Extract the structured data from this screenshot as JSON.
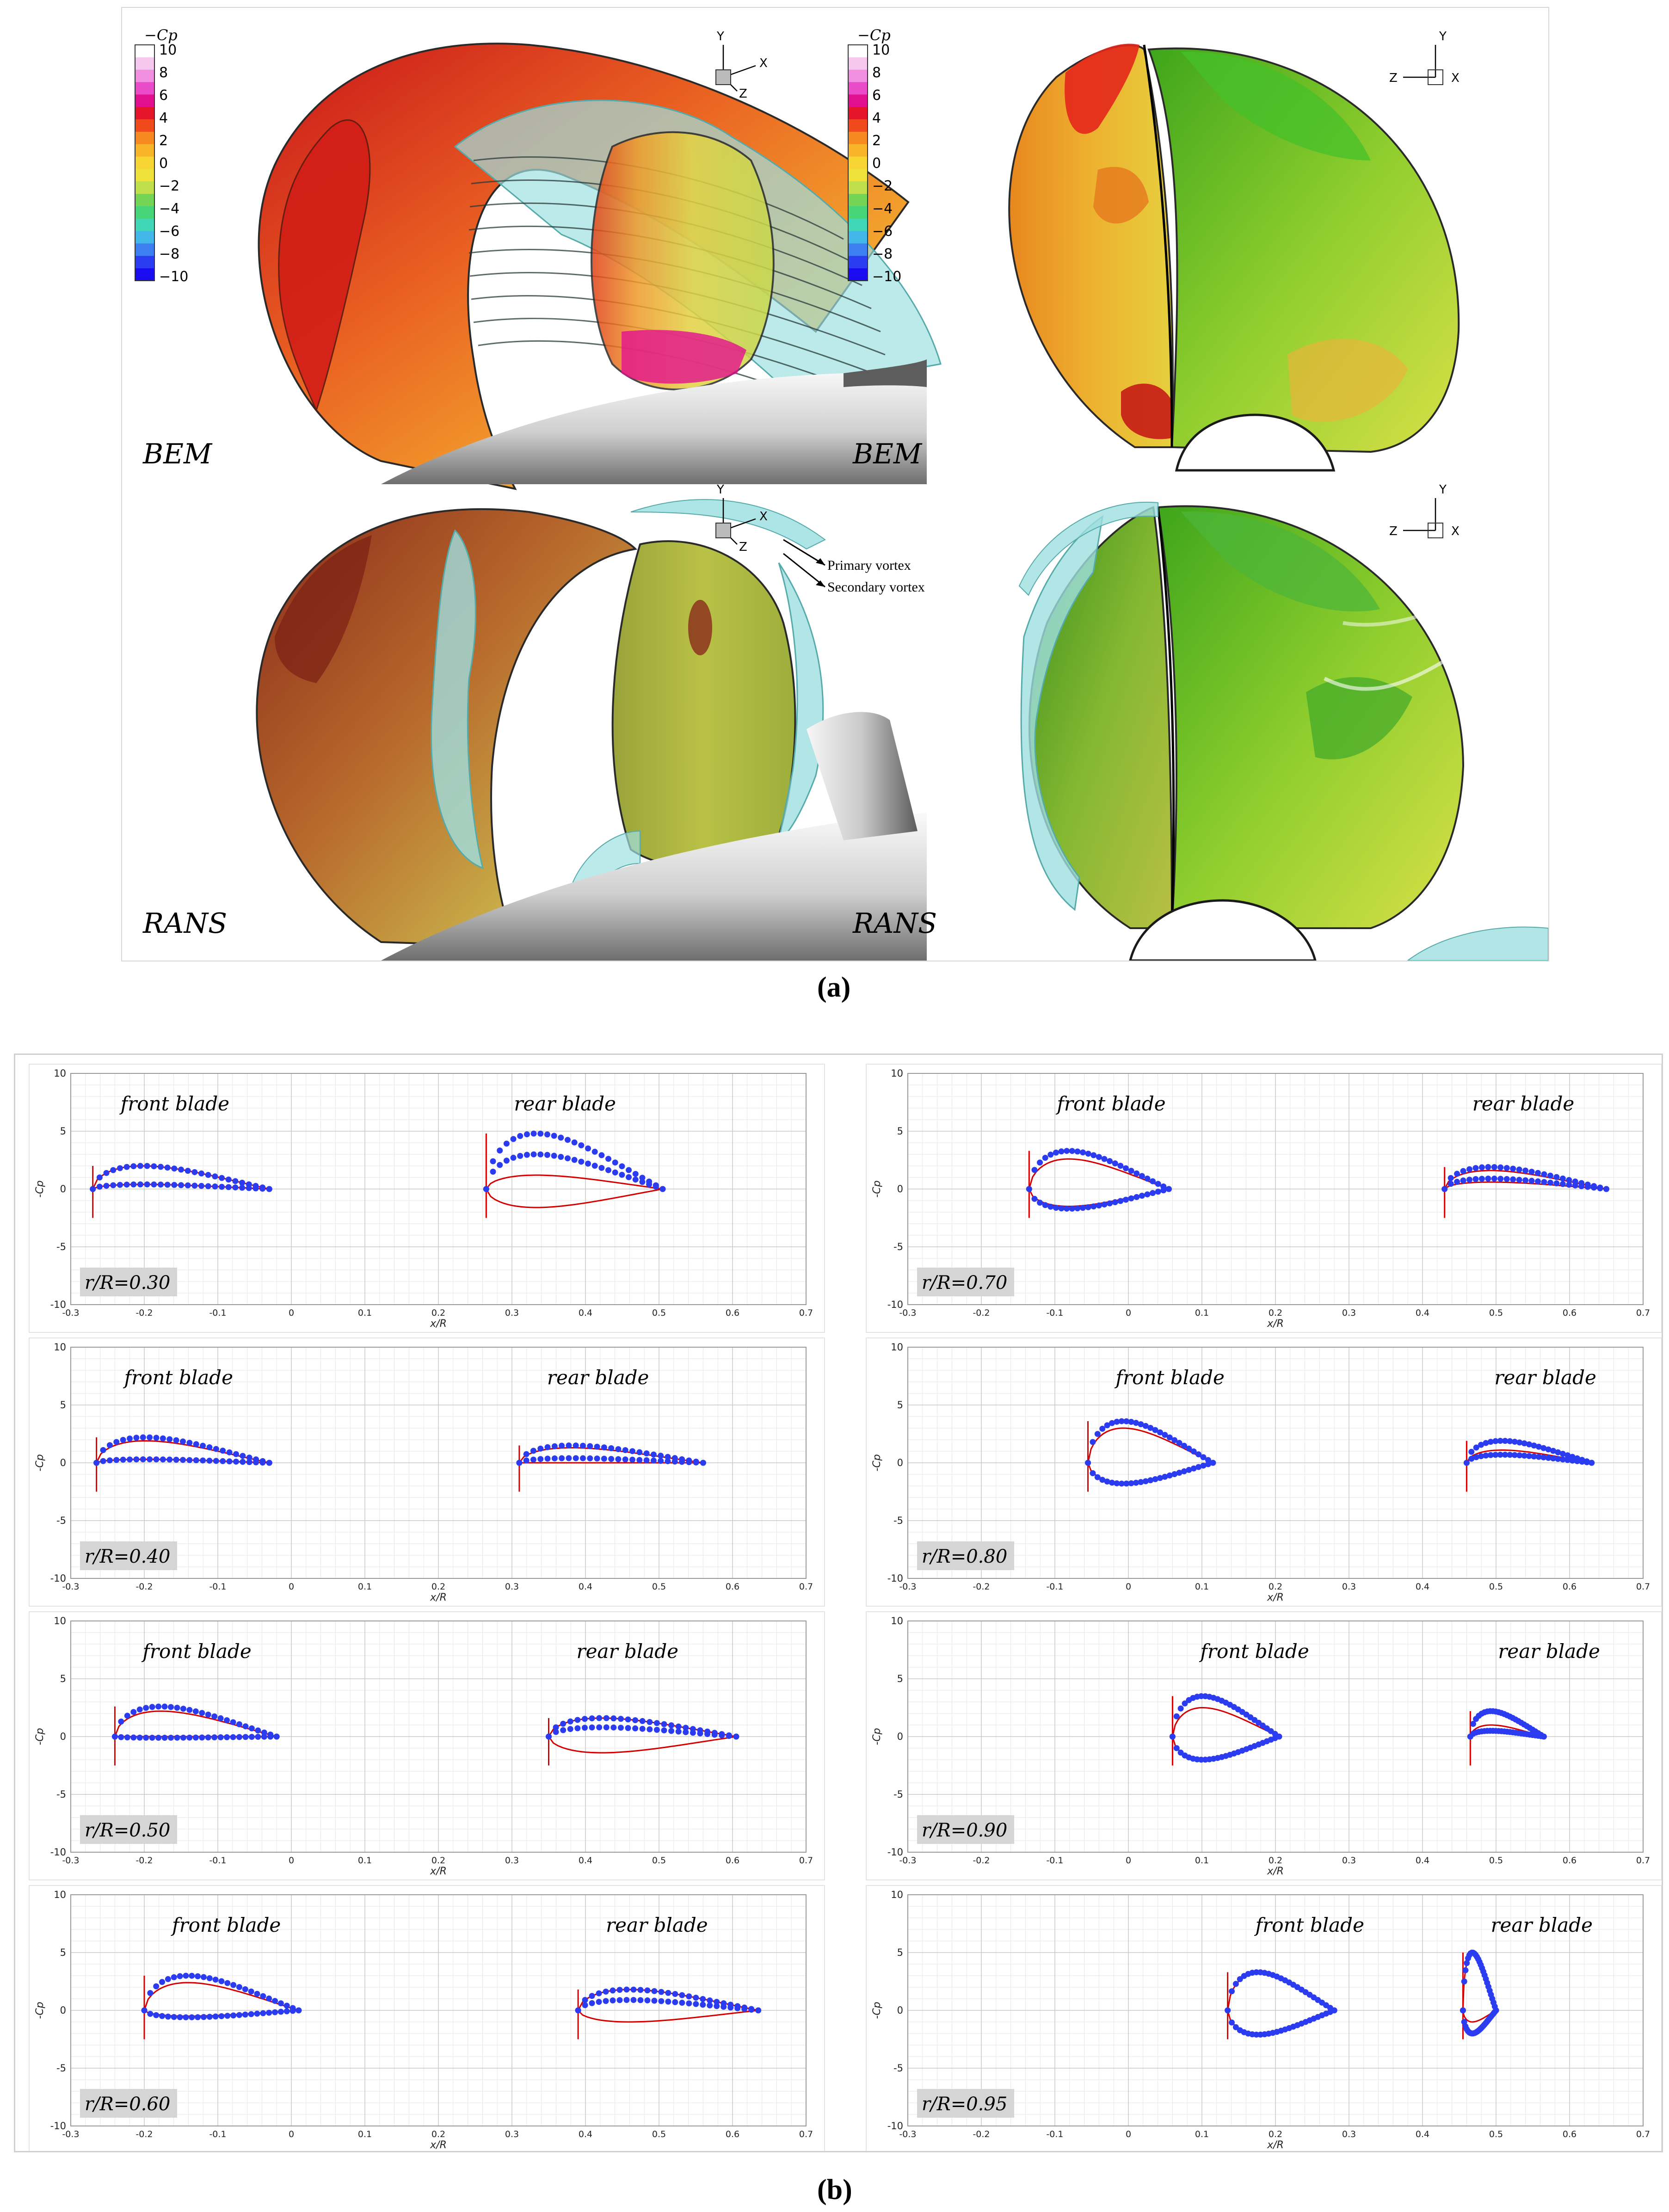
{
  "figure_a": {
    "caption": "(a)",
    "colorbar": {
      "title": "−Cp",
      "ticks": [
        "10",
        "8",
        "6",
        "4",
        "2",
        "0",
        "−2",
        "−4",
        "−6",
        "−8",
        "−10"
      ],
      "colors": [
        "#ffffff",
        "#f6c7ef",
        "#f28fe0",
        "#e94bc9",
        "#e2108f",
        "#e6152c",
        "#f04a1c",
        "#f68a21",
        "#f9b52a",
        "#f7d532",
        "#eee23a",
        "#bfe04a",
        "#74d455",
        "#46d579",
        "#3fd7b6",
        "#42b8e8",
        "#3d7ff0",
        "#2b3df0",
        "#1a0cf0"
      ]
    },
    "panels": [
      {
        "label": "BEM",
        "axes": [
          "Y",
          "X",
          "Z"
        ]
      },
      {
        "label": "BEM",
        "axes": [
          "Y",
          "Z",
          "X"
        ]
      },
      {
        "label": "RANS",
        "axes": [
          "Y",
          "X",
          "Z"
        ],
        "annotations": [
          "Primary vortex",
          "Secondary vortex"
        ]
      },
      {
        "label": "RANS",
        "axes": [
          "Y",
          "Z",
          "X"
        ]
      }
    ],
    "surface_colors": {
      "red": "#d81c1c",
      "orange": "#ec7a20",
      "yellow": "#e8d24a",
      "green": "#62c81f",
      "cyan": "#9fdfe0",
      "grey": "#d8d8d8"
    }
  },
  "figure_b": {
    "caption": "(b)",
    "series_colors": {
      "line": "#d40000",
      "dots": "#2b3cf0"
    }
  },
  "chart_data": [
    {
      "type": "line",
      "label": "r/R=0.30",
      "front": "front blade",
      "rear": "rear blade",
      "xlabel": "x/R",
      "ylabel": "-Cp",
      "xlim": [
        -0.3,
        0.7
      ],
      "ylim": [
        -10,
        10
      ],
      "xticks": [
        "-0.3",
        "-0.2",
        "-0.1",
        "0",
        "0.1",
        "0.2",
        "0.3",
        "0.4",
        "0.5",
        "0.6",
        "0.7"
      ],
      "yticks": [
        "10",
        "5",
        "0",
        "-5",
        "-10"
      ],
      "front_data": {
        "le": -0.27,
        "te": -0.03,
        "line_up": 2.0,
        "line_low": 0.4,
        "dot_up": 2.0,
        "dot_low": 0.4
      },
      "rear_data": {
        "le": 0.265,
        "te": 0.505,
        "line_up": 1.2,
        "line_low": -1.6,
        "dot_up": 4.8,
        "dot_low": 3.0
      }
    },
    {
      "type": "line",
      "label": "r/R=0.70",
      "front": "front blade",
      "rear": "rear blade",
      "xlabel": "x/R",
      "ylabel": "-Cp",
      "xlim": [
        -0.3,
        0.7
      ],
      "ylim": [
        -10,
        10
      ],
      "xticks": [
        "-0.3",
        "-0.2",
        "-0.1",
        "0",
        "0.1",
        "0.2",
        "0.3",
        "0.4",
        "0.5",
        "0.6",
        "0.7"
      ],
      "yticks": [
        "10",
        "5",
        "0",
        "-5",
        "-10"
      ],
      "front_data": {
        "le": -0.135,
        "te": 0.055,
        "line_up": 2.6,
        "line_low": -1.5,
        "dot_up": 3.3,
        "dot_low": -1.7
      },
      "rear_data": {
        "le": 0.43,
        "te": 0.65,
        "line_up": 1.6,
        "line_low": 0.6,
        "dot_up": 1.9,
        "dot_low": 0.9
      }
    },
    {
      "type": "line",
      "label": "r/R=0.40",
      "front": "front blade",
      "rear": "rear blade",
      "xlabel": "x/R",
      "ylabel": "-Cp",
      "xlim": [
        -0.3,
        0.7
      ],
      "ylim": [
        -10,
        10
      ],
      "xticks": [
        "-0.3",
        "-0.2",
        "-0.1",
        "0",
        "0.1",
        "0.2",
        "0.3",
        "0.4",
        "0.5",
        "0.6",
        "0.7"
      ],
      "yticks": [
        "10",
        "5",
        "0",
        "-5",
        "-10"
      ],
      "front_data": {
        "le": -0.265,
        "te": -0.03,
        "line_up": 1.9,
        "line_low": 0.3,
        "dot_up": 2.2,
        "dot_low": 0.3
      },
      "rear_data": {
        "le": 0.31,
        "te": 0.56,
        "line_up": 1.3,
        "line_low": 0.0,
        "dot_up": 1.5,
        "dot_low": 0.4
      }
    },
    {
      "type": "line",
      "label": "r/R=0.80",
      "front": "front blade",
      "rear": "rear blade",
      "xlabel": "x/R",
      "ylabel": "-Cp",
      "xlim": [
        -0.3,
        0.7
      ],
      "ylim": [
        -10,
        10
      ],
      "xticks": [
        "-0.3",
        "-0.2",
        "-0.1",
        "0",
        "0.1",
        "0.2",
        "0.3",
        "0.4",
        "0.5",
        "0.6",
        "0.7"
      ],
      "yticks": [
        "10",
        "5",
        "0",
        "-5",
        "-10"
      ],
      "front_data": {
        "le": -0.055,
        "te": 0.115,
        "line_up": 3.0,
        "line_low": -1.7,
        "dot_up": 3.6,
        "dot_low": -1.8
      },
      "rear_data": {
        "le": 0.46,
        "te": 0.63,
        "line_up": 1.1,
        "line_low": 0.8,
        "dot_up": 1.9,
        "dot_low": 0.7
      }
    },
    {
      "type": "line",
      "label": "r/R=0.50",
      "front": "front blade",
      "rear": "rear blade",
      "xlabel": "x/R",
      "ylabel": "-Cp",
      "xlim": [
        -0.3,
        0.7
      ],
      "ylim": [
        -10,
        10
      ],
      "xticks": [
        "-0.3",
        "-0.2",
        "-0.1",
        "0",
        "0.1",
        "0.2",
        "0.3",
        "0.4",
        "0.5",
        "0.6",
        "0.7"
      ],
      "yticks": [
        "10",
        "5",
        "0",
        "-5",
        "-10"
      ],
      "front_data": {
        "le": -0.24,
        "te": -0.02,
        "line_up": 2.2,
        "line_low": 0.0,
        "dot_up": 2.6,
        "dot_low": -0.1
      },
      "rear_data": {
        "le": 0.35,
        "te": 0.605,
        "line_up": 1.6,
        "line_low": -1.4,
        "dot_up": 1.6,
        "dot_low": 0.8
      }
    },
    {
      "type": "line",
      "label": "r/R=0.90",
      "front": "front blade",
      "rear": "rear blade",
      "xlabel": "x/R",
      "ylabel": "-Cp",
      "xlim": [
        -0.3,
        0.7
      ],
      "ylim": [
        -10,
        10
      ],
      "xticks": [
        "-0.3",
        "-0.2",
        "-0.1",
        "0",
        "0.1",
        "0.2",
        "0.3",
        "0.4",
        "0.5",
        "0.6",
        "0.7"
      ],
      "yticks": [
        "10",
        "5",
        "0",
        "-5",
        "-10"
      ],
      "front_data": {
        "le": 0.06,
        "te": 0.205,
        "line_up": 2.5,
        "line_low": -1.9,
        "dot_up": 3.5,
        "dot_low": -2.0
      },
      "rear_data": {
        "le": 0.465,
        "te": 0.565,
        "line_up": 1.0,
        "line_low": 0.6,
        "dot_up": 2.2,
        "dot_low": 0.5
      }
    },
    {
      "type": "line",
      "label": "r/R=0.60",
      "front": "front blade",
      "rear": "rear blade",
      "xlabel": "x/R",
      "ylabel": "-Cp",
      "xlim": [
        -0.3,
        0.7
      ],
      "ylim": [
        -10,
        10
      ],
      "xticks": [
        "-0.3",
        "-0.2",
        "-0.1",
        "0",
        "0.1",
        "0.2",
        "0.3",
        "0.4",
        "0.5",
        "0.6",
        "0.7"
      ],
      "yticks": [
        "10",
        "5",
        "0",
        "-5",
        "-10"
      ],
      "front_data": {
        "le": -0.2,
        "te": 0.01,
        "line_up": 2.4,
        "line_low": -0.5,
        "dot_up": 3.0,
        "dot_low": -0.6
      },
      "rear_data": {
        "le": 0.39,
        "te": 0.635,
        "line_up": 1.8,
        "line_low": -1.0,
        "dot_up": 1.8,
        "dot_low": 0.9
      }
    },
    {
      "type": "line",
      "label": "r/R=0.95",
      "front": "front blade",
      "rear": "rear blade",
      "xlabel": "x/R",
      "ylabel": "-Cp",
      "xlim": [
        -0.3,
        0.7
      ],
      "ylim": [
        -10,
        10
      ],
      "xticks": [
        "-0.3",
        "-0.2",
        "-0.1",
        "0",
        "0.1",
        "0.2",
        "0.3",
        "0.4",
        "0.5",
        "0.6",
        "0.7"
      ],
      "yticks": [
        "10",
        "5",
        "0",
        "-5",
        "-10"
      ],
      "front_data": {
        "le": 0.135,
        "te": 0.28,
        "line_up": 3.2,
        "line_low": -2.0,
        "dot_up": 3.3,
        "dot_low": -2.1
      },
      "rear_data": {
        "le": 0.455,
        "te": 0.5,
        "line_up": 5.0,
        "line_low": -1.0,
        "dot_up": 5.0,
        "dot_low": -2.0
      }
    }
  ]
}
